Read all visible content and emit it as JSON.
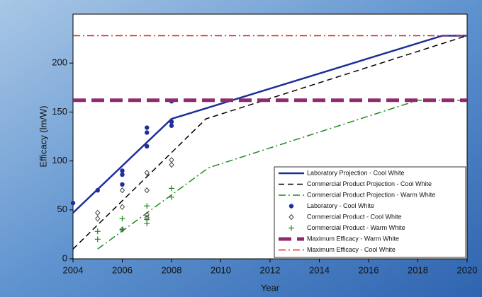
{
  "chart_data": {
    "type": "line",
    "x_label": "Year",
    "y_label": "Efficacy (lm/W)",
    "xlim": [
      2004,
      2020
    ],
    "xticks": [
      2004,
      2006,
      2008,
      2010,
      2012,
      2014,
      2016,
      2018,
      2020
    ],
    "ylim": [
      0,
      250
    ],
    "yticks": [
      0,
      50,
      100,
      150,
      200
    ],
    "legend": "lower right",
    "series": [
      {
        "name": "Laboratory Projection - Cool White",
        "color": "#1f2f9a",
        "style": "solid",
        "width": 2.5,
        "x": [
          2004,
          2008,
          2019,
          2020
        ],
        "values": [
          47,
          143,
          228,
          228
        ]
      },
      {
        "name": "Commercial Product Projection - Cool White",
        "color": "#000000",
        "style": "dash",
        "width": 1.5,
        "x": [
          2004,
          2009.4,
          2020
        ],
        "values": [
          10,
          143,
          228
        ]
      },
      {
        "name": "Commercial Product Projection - Warm White",
        "color": "#1e8a1e",
        "style": "dashdot",
        "width": 1.5,
        "x": [
          2005,
          2009.5,
          2018,
          2020
        ],
        "values": [
          10,
          93,
          162,
          162
        ]
      },
      {
        "name": "Laboratory - Cool White",
        "color": "#1f2f9a",
        "marker": "circle",
        "x": [
          2004,
          2005,
          2006,
          2006,
          2006,
          2007,
          2007,
          2007,
          2008,
          2008,
          2008
        ],
        "values": [
          57,
          70,
          90,
          86,
          76,
          134,
          129,
          115,
          161,
          140,
          136
        ]
      },
      {
        "name": "Commercial Product - Cool White",
        "color": "#444444",
        "marker": "diamond",
        "x": [
          2005,
          2005,
          2006,
          2006,
          2006,
          2007,
          2007,
          2007,
          2007,
          2008,
          2008
        ],
        "values": [
          47,
          41,
          70,
          53,
          30,
          88,
          70,
          45,
          42,
          101,
          96
        ]
      },
      {
        "name": "Commercial Product - Warm White",
        "color": "#1e8a1e",
        "marker": "plus",
        "x": [
          2005,
          2005,
          2006,
          2006,
          2007,
          2007,
          2007,
          2008,
          2008
        ],
        "values": [
          28,
          20,
          41,
          30,
          54,
          40,
          36,
          72,
          63
        ]
      },
      {
        "name": "Maximum Efficacy - Warm White",
        "color": "#8e2a6e",
        "style": "longdash",
        "width": 5,
        "x": [
          2004,
          2020
        ],
        "values": [
          162,
          162
        ]
      },
      {
        "name": "Maximum Efficacy - Cool White",
        "color": "#e0201a",
        "style": "dashdot",
        "width": 1.5,
        "x": [
          2004,
          2020
        ],
        "values": [
          228,
          228
        ]
      }
    ]
  }
}
